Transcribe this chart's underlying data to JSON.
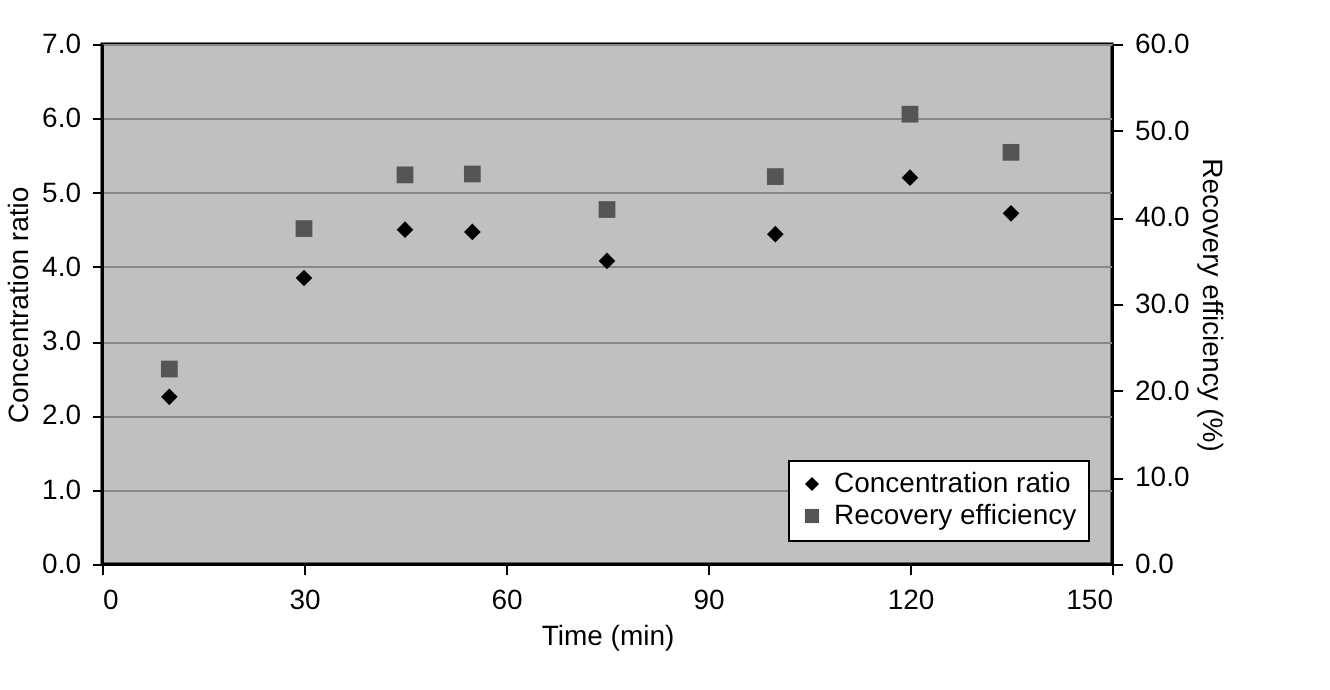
{
  "chart_data": {
    "type": "scatter",
    "xlabel": "Time (min)",
    "ylabel": "Concentration ratio",
    "y2label": "Recovery efficiency (%)",
    "x": [
      10,
      30,
      45,
      55,
      75,
      100,
      120,
      135
    ],
    "series": [
      {
        "name": "Concentration ratio",
        "color": "#000000",
        "marker": "diamond",
        "values": [
          2.25,
          3.85,
          4.5,
          4.47,
          4.08,
          4.44,
          5.2,
          4.72
        ]
      },
      {
        "name": "Recovery efficiency",
        "color": "#555555",
        "marker": "square",
        "axis": "y2",
        "values": [
          22.5,
          38.7,
          44.9,
          45.0,
          40.9,
          44.7,
          51.9,
          47.5
        ]
      }
    ],
    "xlim": [
      0,
      150
    ],
    "xticks": [
      0,
      30,
      60,
      90,
      120,
      150
    ],
    "ylim": [
      0,
      7
    ],
    "yticks": [
      {
        "value": 0,
        "label": "0.0"
      },
      {
        "value": 1,
        "label": "1.0"
      },
      {
        "value": 2,
        "label": "2.0"
      },
      {
        "value": 3,
        "label": "3.0"
      },
      {
        "value": 4,
        "label": "4.0"
      },
      {
        "value": 5,
        "label": "5.0"
      },
      {
        "value": 6,
        "label": "6.0"
      },
      {
        "value": 7,
        "label": "7.0"
      }
    ],
    "y2lim": [
      0,
      60
    ],
    "y2ticks": [
      {
        "value": 0,
        "label": "0.0"
      },
      {
        "value": 10,
        "label": "10.0"
      },
      {
        "value": 20,
        "label": "20.0"
      },
      {
        "value": 30,
        "label": "30.0"
      },
      {
        "value": 40,
        "label": "40.0"
      },
      {
        "value": 50,
        "label": "50.0"
      },
      {
        "value": 60,
        "label": "60.0"
      }
    ],
    "grid": "y",
    "legend": "bottom right"
  }
}
